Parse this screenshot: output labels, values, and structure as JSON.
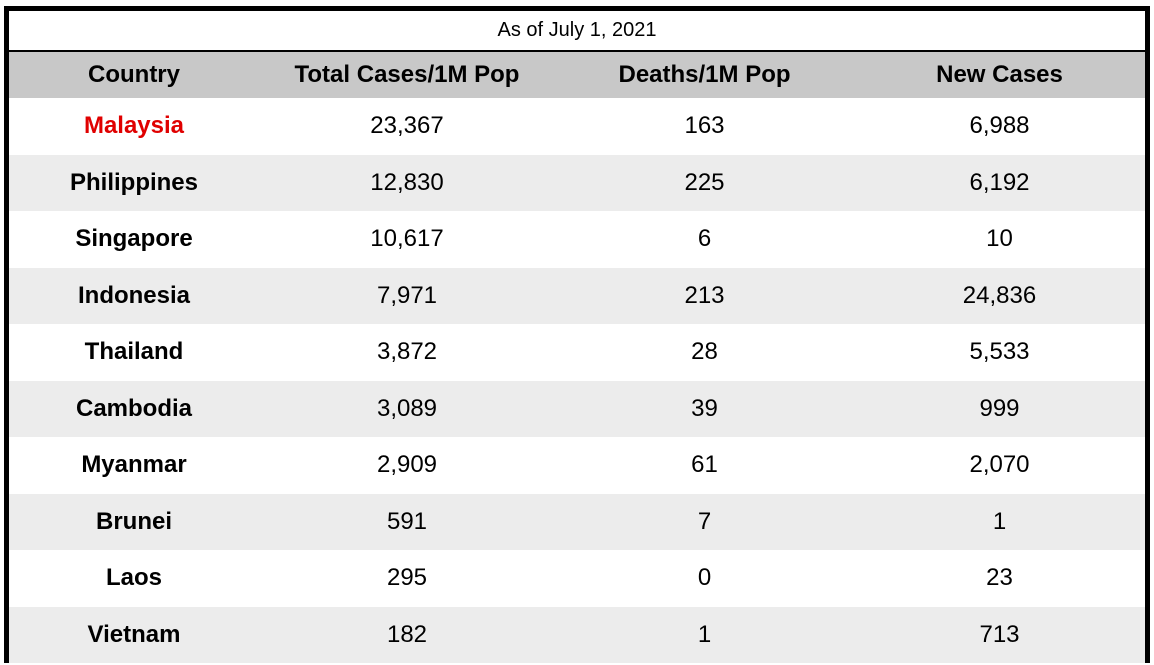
{
  "colors": {
    "header_bg": "#c8c8c8",
    "row_alt_bg": "#ececec",
    "row_bg": "#ffffff",
    "highlight_text": "#e00000",
    "border": "#000000"
  },
  "chart_data": {
    "type": "table",
    "caption": "As of July 1, 2021",
    "columns": [
      "Country",
      "Total Cases/1M Pop",
      "Deaths/1M Pop",
      "New Cases"
    ],
    "highlight_row": 0,
    "rows": [
      [
        "Malaysia",
        "23,367",
        "163",
        "6,988"
      ],
      [
        "Philippines",
        "12,830",
        "225",
        "6,192"
      ],
      [
        "Singapore",
        "10,617",
        "6",
        "10"
      ],
      [
        "Indonesia",
        "7,971",
        "213",
        "24,836"
      ],
      [
        "Thailand",
        "3,872",
        "28",
        "5,533"
      ],
      [
        "Cambodia",
        "3,089",
        "39",
        "999"
      ],
      [
        "Myanmar",
        "2,909",
        "61",
        "2,070"
      ],
      [
        "Brunei",
        "591",
        "7",
        "1"
      ],
      [
        "Laos",
        "295",
        "0",
        "23"
      ],
      [
        "Vietnam",
        "182",
        "1",
        "713"
      ]
    ]
  }
}
